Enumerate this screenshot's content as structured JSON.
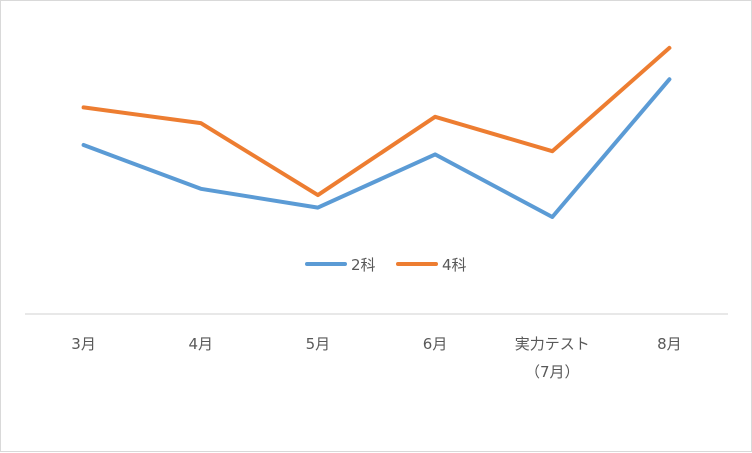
{
  "chart_data": {
    "type": "line",
    "title": "",
    "xlabel": "",
    "ylabel": "",
    "categories": [
      [
        "3月"
      ],
      [
        "4月"
      ],
      [
        "5月"
      ],
      [
        "6月"
      ],
      [
        "実力テスト",
        "（7月）"
      ],
      [
        "8月"
      ]
    ],
    "series": [
      {
        "name": "2科",
        "color": "#5b9bd5",
        "values": [
          54,
          40,
          34,
          51,
          31,
          75
        ]
      },
      {
        "name": "4科",
        "color": "#ed7d31",
        "values": [
          66,
          61,
          38,
          63,
          52,
          85
        ]
      }
    ],
    "ylim": [
      0,
      100
    ],
    "grid": false,
    "legend_position": "inside-bottom-center"
  }
}
